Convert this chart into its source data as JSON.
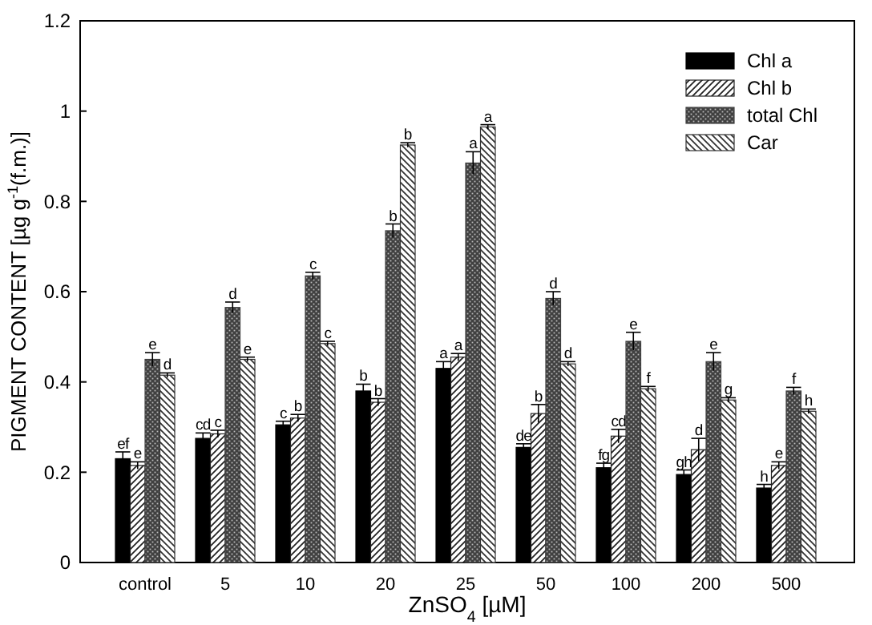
{
  "chart_data": {
    "type": "bar",
    "xlabel": "ZnSO$_{4}$ [µM]",
    "ylabel": "PIGMENT CONTENT [µg g$^{-1}$(f.m.)]",
    "categories": [
      "control",
      "5",
      "10",
      "20",
      "25",
      "50",
      "100",
      "200",
      "500"
    ],
    "ylim": [
      0,
      1.2
    ],
    "yticks": [
      0,
      0.2,
      0.4,
      0.6,
      0.8,
      1.0,
      1.2
    ],
    "legend": "top right",
    "series": [
      {
        "name": "Chl a",
        "color": "#000000",
        "values": [
          0.23,
          0.275,
          0.305,
          0.38,
          0.43,
          0.255,
          0.21,
          0.195,
          0.165
        ],
        "errors": [
          0.015,
          0.012,
          0.008,
          0.015,
          0.015,
          0.008,
          0.01,
          0.01,
          0.008
        ],
        "value_labels": [
          "ef",
          "cd",
          "c",
          "b",
          "a",
          "de",
          "fg",
          "gh",
          "h"
        ]
      },
      {
        "name": "Chl b",
        "color": "#222222",
        "values": [
          0.215,
          0.285,
          0.32,
          0.355,
          0.455,
          0.33,
          0.28,
          0.25,
          0.215
        ],
        "errors": [
          0.008,
          0.008,
          0.008,
          0.008,
          0.008,
          0.02,
          0.015,
          0.025,
          0.008
        ],
        "value_labels": [
          "e",
          "c",
          "b",
          "b",
          "a",
          "b",
          "cd",
          "d",
          "e"
        ]
      },
      {
        "name": "total Chl",
        "color": "#404040",
        "values": [
          0.45,
          0.565,
          0.635,
          0.735,
          0.885,
          0.585,
          0.49,
          0.445,
          0.38
        ],
        "errors": [
          0.015,
          0.012,
          0.008,
          0.015,
          0.025,
          0.015,
          0.02,
          0.02,
          0.008
        ],
        "value_labels": [
          "e",
          "d",
          "c",
          "b",
          "a",
          "d",
          "e",
          "e",
          "f"
        ]
      },
      {
        "name": "Car",
        "color": "#333333",
        "values": [
          0.415,
          0.45,
          0.485,
          0.925,
          0.965,
          0.44,
          0.385,
          0.36,
          0.335
        ],
        "errors": [
          0.005,
          0.005,
          0.005,
          0.005,
          0.005,
          0.005,
          0.005,
          0.005,
          0.005
        ],
        "value_labels": [
          "d",
          "e",
          "c",
          "b",
          "a",
          "d",
          "f",
          "g",
          "h"
        ]
      }
    ]
  }
}
